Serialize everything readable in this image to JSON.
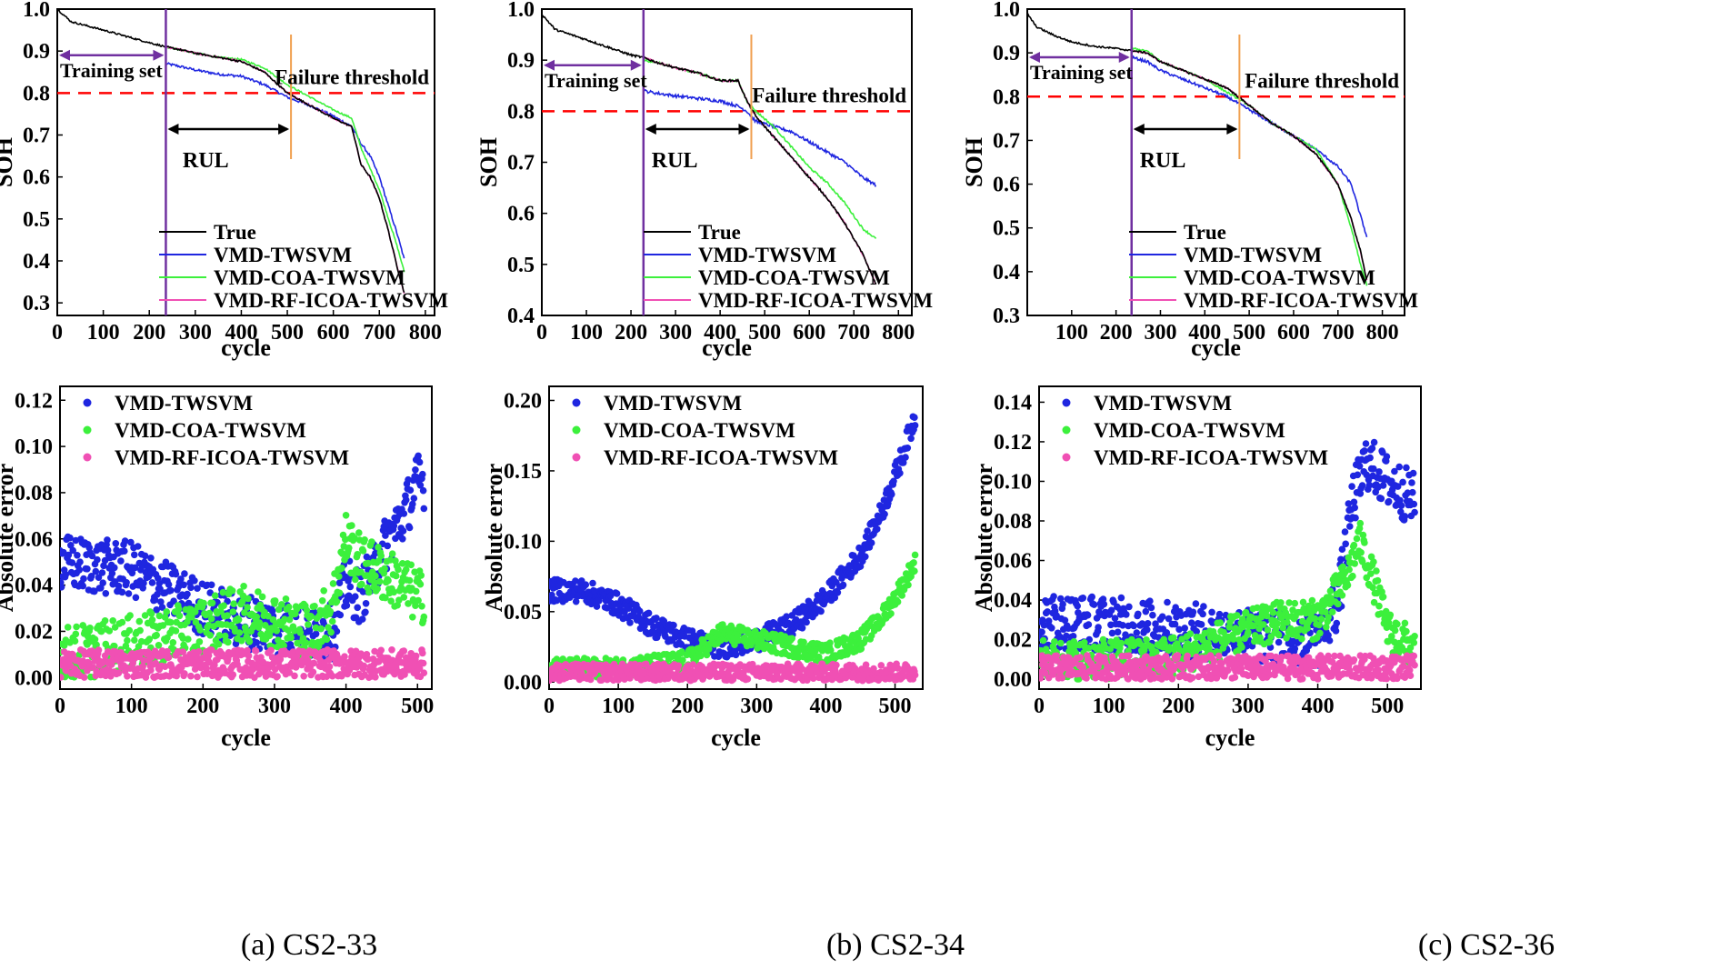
{
  "colors": {
    "true": "#000000",
    "twsvm": "#1f26e0",
    "coa": "#3cf03c",
    "rf": "#f050b4",
    "training": "#7030a0",
    "threshold": "#ff0000",
    "rul_line": "#f0a050"
  },
  "chart_data": [
    {
      "panel": "a-top",
      "type": "line",
      "xlabel": "cycle",
      "ylabel": "SOH",
      "xlim": [
        0,
        820
      ],
      "ylim": [
        0.27,
        1.0
      ],
      "xticks": [
        0,
        100,
        200,
        300,
        400,
        500,
        600,
        700,
        800
      ],
      "yticks": [
        0.3,
        0.4,
        0.5,
        0.6,
        0.7,
        0.8,
        0.9,
        1.0
      ],
      "train_end": 236,
      "rul_end": 508,
      "threshold": 0.8,
      "annotations": {
        "training": "Training set",
        "threshold": "Failure threshold",
        "rul": "RUL"
      },
      "legend": [
        "True",
        "VMD-TWSVM",
        "VMD-COA-TWSVM",
        "VMD-RF-ICOA-TWSVM"
      ],
      "series": [
        {
          "name": "True",
          "x": [
            0,
            30,
            100,
            150,
            200,
            236,
            260,
            300,
            350,
            400,
            450,
            500,
            550,
            600,
            640,
            660,
            680,
            700,
            720,
            740,
            755
          ],
          "y": [
            1.0,
            0.97,
            0.95,
            0.935,
            0.92,
            0.91,
            0.905,
            0.895,
            0.885,
            0.875,
            0.85,
            0.8,
            0.77,
            0.74,
            0.72,
            0.63,
            0.6,
            0.55,
            0.47,
            0.38,
            0.32
          ]
        },
        {
          "name": "VMD-TWSVM",
          "x": [
            236,
            260,
            300,
            350,
            400,
            450,
            500,
            550,
            600,
            640,
            660,
            680,
            700,
            720,
            740,
            755
          ],
          "y": [
            0.87,
            0.865,
            0.855,
            0.845,
            0.84,
            0.82,
            0.79,
            0.77,
            0.745,
            0.72,
            0.68,
            0.65,
            0.6,
            0.53,
            0.46,
            0.4
          ]
        },
        {
          "name": "VMD-COA-TWSVM",
          "x": [
            236,
            260,
            300,
            350,
            400,
            450,
            500,
            550,
            600,
            640,
            660,
            680,
            700,
            720,
            740,
            755
          ],
          "y": [
            0.91,
            0.905,
            0.895,
            0.885,
            0.88,
            0.86,
            0.82,
            0.79,
            0.76,
            0.74,
            0.67,
            0.62,
            0.57,
            0.5,
            0.43,
            0.37
          ]
        },
        {
          "name": "VMD-RF-ICOA-TWSVM",
          "x": [
            236,
            260,
            300,
            350,
            400,
            450,
            500,
            550,
            600,
            640,
            660,
            680,
            700,
            720,
            740,
            755
          ],
          "y": [
            0.91,
            0.905,
            0.895,
            0.885,
            0.875,
            0.85,
            0.8,
            0.77,
            0.74,
            0.72,
            0.63,
            0.6,
            0.55,
            0.47,
            0.38,
            0.32
          ]
        }
      ]
    },
    {
      "panel": "b-top",
      "type": "line",
      "xlabel": "cycle",
      "ylabel": "SOH",
      "xlim": [
        0,
        830
      ],
      "ylim": [
        0.4,
        1.0
      ],
      "xticks": [
        0,
        100,
        200,
        300,
        400,
        500,
        600,
        700,
        800
      ],
      "yticks": [
        0.4,
        0.5,
        0.6,
        0.7,
        0.8,
        0.9,
        1.0
      ],
      "train_end": 228,
      "rul_end": 470,
      "threshold": 0.8,
      "annotations": {
        "training": "Training set",
        "threshold": "Failure threshold",
        "rul": "RUL"
      },
      "legend": [
        "True",
        "VMD-TWSVM",
        "VMD-COA-TWSVM",
        "VMD-RF-ICOA-TWSVM"
      ],
      "series": [
        {
          "name": "True",
          "x": [
            0,
            30,
            100,
            150,
            200,
            228,
            260,
            300,
            350,
            400,
            440,
            460,
            480,
            520,
            560,
            600,
            640,
            680,
            720,
            750
          ],
          "y": [
            0.99,
            0.96,
            0.94,
            0.925,
            0.91,
            0.905,
            0.895,
            0.885,
            0.875,
            0.86,
            0.86,
            0.82,
            0.79,
            0.75,
            0.71,
            0.67,
            0.63,
            0.58,
            0.52,
            0.46
          ]
        },
        {
          "name": "VMD-TWSVM",
          "x": [
            228,
            260,
            300,
            350,
            400,
            440,
            460,
            480,
            520,
            560,
            600,
            640,
            680,
            720,
            750
          ],
          "y": [
            0.84,
            0.835,
            0.83,
            0.825,
            0.82,
            0.81,
            0.8,
            0.78,
            0.77,
            0.76,
            0.74,
            0.72,
            0.7,
            0.67,
            0.655
          ]
        },
        {
          "name": "VMD-COA-TWSVM",
          "x": [
            228,
            260,
            300,
            350,
            400,
            440,
            460,
            480,
            520,
            560,
            600,
            640,
            680,
            720,
            750
          ],
          "y": [
            0.9,
            0.895,
            0.885,
            0.875,
            0.86,
            0.86,
            0.82,
            0.8,
            0.77,
            0.73,
            0.69,
            0.66,
            0.62,
            0.57,
            0.55
          ]
        },
        {
          "name": "VMD-RF-ICOA-TWSVM",
          "x": [
            228,
            260,
            300,
            350,
            400,
            440,
            460,
            480,
            520,
            560,
            600,
            640,
            680,
            720,
            750
          ],
          "y": [
            0.905,
            0.895,
            0.885,
            0.875,
            0.86,
            0.86,
            0.82,
            0.79,
            0.75,
            0.71,
            0.67,
            0.63,
            0.58,
            0.52,
            0.46
          ]
        }
      ]
    },
    {
      "panel": "c-top",
      "type": "line",
      "xlabel": "cycle",
      "ylabel": "SOH",
      "xlim": [
        0,
        850
      ],
      "ylim": [
        0.3,
        1.0
      ],
      "xticks": [
        100,
        200,
        300,
        400,
        500,
        600,
        700,
        800
      ],
      "yticks": [
        0.3,
        0.4,
        0.5,
        0.6,
        0.7,
        0.8,
        0.9,
        1.0
      ],
      "train_end": 235,
      "rul_end": 478,
      "threshold": 0.8,
      "annotations": {
        "training": "Training set",
        "threshold": "Failure threshold",
        "rul": "RUL"
      },
      "legend": [
        "True",
        "VMD-TWSVM",
        "VMD-COA-TWSVM",
        "VMD-RF-ICOA-TWSVM"
      ],
      "series": [
        {
          "name": "True",
          "x": [
            0,
            20,
            60,
            100,
            150,
            200,
            235,
            270,
            300,
            350,
            400,
            450,
            500,
            550,
            600,
            650,
            700,
            730,
            750,
            765
          ],
          "y": [
            0.99,
            0.96,
            0.94,
            0.925,
            0.915,
            0.91,
            0.905,
            0.9,
            0.88,
            0.86,
            0.84,
            0.82,
            0.78,
            0.74,
            0.71,
            0.67,
            0.6,
            0.52,
            0.45,
            0.38
          ]
        },
        {
          "name": "VMD-TWSVM",
          "x": [
            235,
            270,
            300,
            350,
            400,
            450,
            500,
            550,
            600,
            650,
            700,
            730,
            750,
            765
          ],
          "y": [
            0.89,
            0.88,
            0.86,
            0.84,
            0.82,
            0.8,
            0.77,
            0.74,
            0.71,
            0.68,
            0.64,
            0.6,
            0.53,
            0.48
          ]
        },
        {
          "name": "VMD-COA-TWSVM",
          "x": [
            235,
            270,
            300,
            350,
            400,
            450,
            500,
            550,
            600,
            650,
            700,
            730,
            750,
            765
          ],
          "y": [
            0.91,
            0.905,
            0.88,
            0.86,
            0.84,
            0.81,
            0.78,
            0.74,
            0.71,
            0.68,
            0.6,
            0.5,
            0.42,
            0.37
          ]
        },
        {
          "name": "VMD-RF-ICOA-TWSVM",
          "x": [
            235,
            270,
            300,
            350,
            400,
            450,
            500,
            550,
            600,
            650,
            700,
            730,
            750,
            765
          ],
          "y": [
            0.905,
            0.9,
            0.88,
            0.86,
            0.84,
            0.82,
            0.78,
            0.74,
            0.71,
            0.67,
            0.6,
            0.52,
            0.45,
            0.38
          ]
        }
      ]
    },
    {
      "panel": "a-bottom",
      "type": "scatter",
      "xlabel": "cycle",
      "ylabel": "Absolute error",
      "xlim": [
        0,
        520
      ],
      "ylim": [
        -0.005,
        0.126
      ],
      "xticks": [
        0,
        100,
        200,
        300,
        400,
        500
      ],
      "yticks": [
        0.0,
        0.02,
        0.04,
        0.06,
        0.08,
        0.1,
        0.12
      ],
      "ytick_labels": [
        "0.00",
        "0.02",
        "0.04",
        "0.06",
        "0.08",
        "0.10",
        "0.12"
      ],
      "n": 510,
      "legend": [
        "VMD-TWSVM",
        "VMD-COA-TWSVM",
        "VMD-RF-ICOA-TWSVM"
      ],
      "series": [
        {
          "name": "VMD-TWSVM",
          "x": [
            0,
            50,
            100,
            150,
            200,
            250,
            300,
            350,
            380,
            400,
            420,
            450,
            480,
            500,
            510
          ],
          "y": [
            0.05,
            0.048,
            0.047,
            0.038,
            0.03,
            0.025,
            0.022,
            0.018,
            0.02,
            0.04,
            0.035,
            0.055,
            0.07,
            0.085,
            0.085
          ],
          "spread": 0.012
        },
        {
          "name": "VMD-COA-TWSVM",
          "x": [
            0,
            50,
            100,
            150,
            200,
            250,
            300,
            350,
            380,
            400,
            420,
            450,
            480,
            500,
            510
          ],
          "y": [
            0.01,
            0.012,
            0.015,
            0.018,
            0.022,
            0.028,
            0.025,
            0.02,
            0.03,
            0.06,
            0.05,
            0.045,
            0.04,
            0.035,
            0.035
          ],
          "spread": 0.012
        },
        {
          "name": "VMD-RF-ICOA-TWSVM",
          "x": [
            0,
            510
          ],
          "y": [
            0.006,
            0.006
          ],
          "spread": 0.006
        }
      ]
    },
    {
      "panel": "b-bottom",
      "type": "scatter",
      "xlabel": "cycle",
      "ylabel": "Absolute error",
      "xlim": [
        0,
        540
      ],
      "ylim": [
        -0.005,
        0.21
      ],
      "xticks": [
        0,
        100,
        200,
        300,
        400,
        500
      ],
      "yticks": [
        0.0,
        0.05,
        0.1,
        0.15,
        0.2
      ],
      "ytick_labels": [
        "0.00",
        "0.05",
        "0.10",
        "0.15",
        "0.20"
      ],
      "n": 530,
      "legend": [
        "VMD-TWSVM",
        "VMD-COA-TWSVM",
        "VMD-RF-ICOA-TWSVM"
      ],
      "series": [
        {
          "name": "VMD-TWSVM",
          "x": [
            0,
            50,
            100,
            150,
            200,
            250,
            300,
            350,
            400,
            450,
            480,
            510,
            530
          ],
          "y": [
            0.065,
            0.065,
            0.055,
            0.04,
            0.03,
            0.025,
            0.03,
            0.04,
            0.06,
            0.09,
            0.12,
            0.16,
            0.19
          ],
          "spread": 0.008
        },
        {
          "name": "VMD-COA-TWSVM",
          "x": [
            0,
            100,
            200,
            250,
            300,
            350,
            400,
            450,
            480,
            500,
            530
          ],
          "y": [
            0.01,
            0.01,
            0.015,
            0.035,
            0.03,
            0.025,
            0.02,
            0.03,
            0.045,
            0.06,
            0.085
          ],
          "spread": 0.007
        },
        {
          "name": "VMD-RF-ICOA-TWSVM",
          "x": [
            0,
            530
          ],
          "y": [
            0.007,
            0.007
          ],
          "spread": 0.006
        }
      ]
    },
    {
      "panel": "c-bottom",
      "type": "scatter",
      "xlabel": "cycle",
      "ylabel": "Absolute error",
      "xlim": [
        0,
        548
      ],
      "ylim": [
        -0.005,
        0.148
      ],
      "xticks": [
        0,
        100,
        200,
        300,
        400,
        500
      ],
      "yticks": [
        0.0,
        0.02,
        0.04,
        0.06,
        0.08,
        0.1,
        0.12,
        0.14
      ],
      "ytick_labels": [
        "0.00",
        "0.02",
        "0.04",
        "0.06",
        "0.08",
        "0.10",
        "0.12",
        "0.14"
      ],
      "n": 540,
      "legend": [
        "VMD-TWSVM",
        "VMD-COA-TWSVM",
        "VMD-RF-ICOA-TWSVM"
      ],
      "series": [
        {
          "name": "VMD-TWSVM",
          "x": [
            0,
            100,
            200,
            300,
            400,
            430,
            450,
            470,
            500,
            540
          ],
          "y": [
            0.03,
            0.028,
            0.025,
            0.022,
            0.02,
            0.04,
            0.09,
            0.11,
            0.1,
            0.09
          ],
          "spread": 0.014
        },
        {
          "name": "VMD-COA-TWSVM",
          "x": [
            0,
            100,
            200,
            300,
            350,
            400,
            440,
            460,
            480,
            500,
            540
          ],
          "y": [
            0.01,
            0.01,
            0.012,
            0.025,
            0.03,
            0.03,
            0.05,
            0.07,
            0.05,
            0.025,
            0.015
          ],
          "spread": 0.01
        },
        {
          "name": "VMD-RF-ICOA-TWSVM",
          "x": [
            0,
            540
          ],
          "y": [
            0.006,
            0.006
          ],
          "spread": 0.006
        }
      ]
    }
  ],
  "captions": [
    "(a) CS2-33",
    "(b) CS2-34",
    "(c) CS2-36"
  ]
}
